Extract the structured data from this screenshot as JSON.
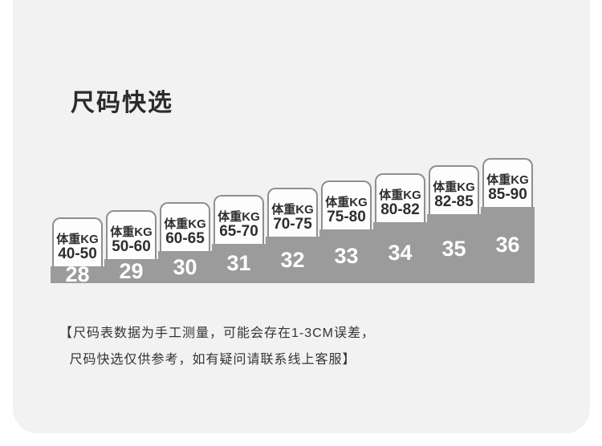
{
  "page": {
    "title": "尺码快选",
    "panel_color": "#f2f2f2",
    "step_gray": "#9b9b9b",
    "card_bg": "#fdfdfd",
    "card_border": "#8f8f8f",
    "text_dark": "#2b2b2b",
    "number_color": "#ffffff"
  },
  "chart_data": {
    "type": "bar",
    "title": "尺码快选",
    "weight_unit_label": "体重KG",
    "categories": [
      "28",
      "29",
      "30",
      "31",
      "32",
      "33",
      "34",
      "35",
      "36"
    ],
    "series": [
      {
        "name": "体重KG",
        "values": [
          "40-50",
          "50-60",
          "60-65",
          "65-70",
          "70-75",
          "75-80",
          "80-82",
          "82-85",
          "85-90"
        ]
      }
    ],
    "layout": {
      "style": "ascending-staircase",
      "grid": false,
      "legend": false
    },
    "steps": [
      {
        "size": "28",
        "weight_label": "体重KG",
        "weight_range": "40-50"
      },
      {
        "size": "29",
        "weight_label": "体重KG",
        "weight_range": "50-60"
      },
      {
        "size": "30",
        "weight_label": "体重KG",
        "weight_range": "60-65"
      },
      {
        "size": "31",
        "weight_label": "体重KG",
        "weight_range": "65-70"
      },
      {
        "size": "32",
        "weight_label": "体重KG",
        "weight_range": "70-75"
      },
      {
        "size": "33",
        "weight_label": "体重KG",
        "weight_range": "75-80"
      },
      {
        "size": "34",
        "weight_label": "体重KG",
        "weight_range": "80-82"
      },
      {
        "size": "35",
        "weight_label": "体重KG",
        "weight_range": "82-85"
      },
      {
        "size": "36",
        "weight_label": "体重KG",
        "weight_range": "85-90"
      }
    ]
  },
  "footer": {
    "line1": "【尺码表数据为手工测量，可能会存在1-3CM误差，",
    "line2": "尺码快选仅供参考，如有疑问请联系线上客服】"
  }
}
